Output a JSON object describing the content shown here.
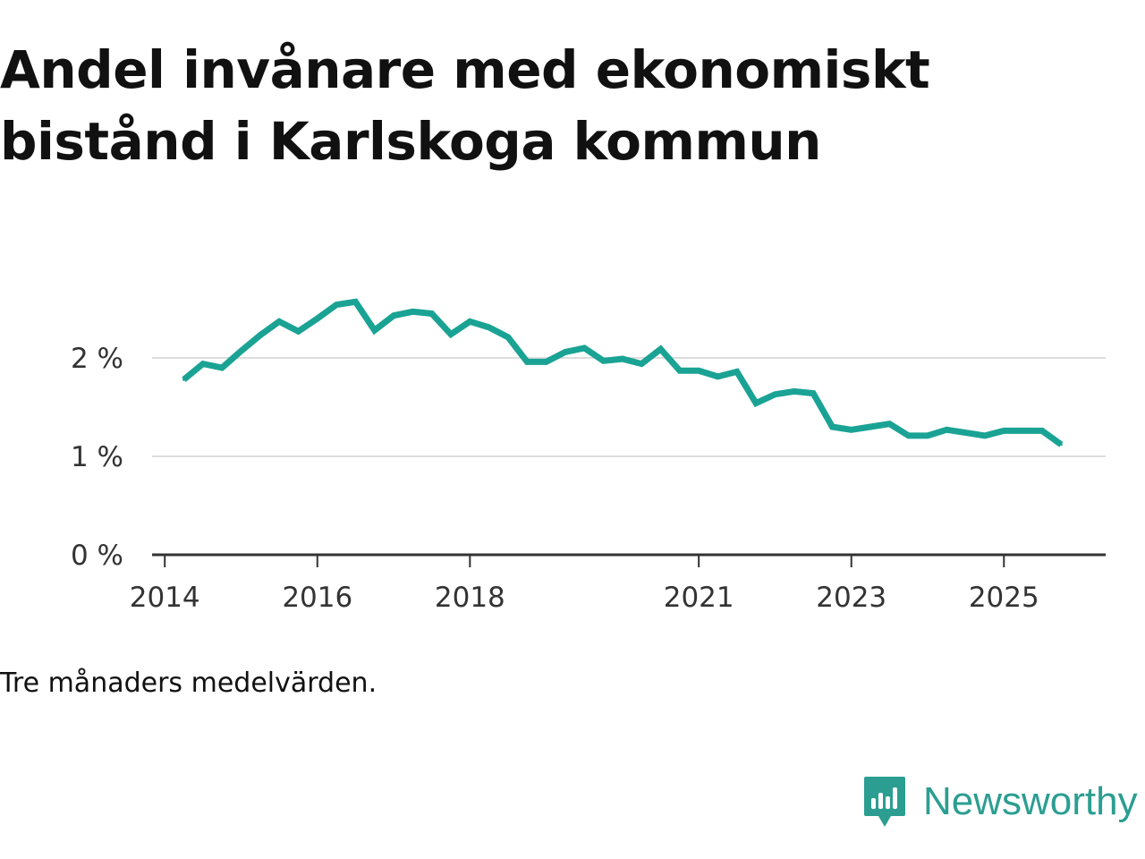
{
  "title": "Andel invånare med ekonomiskt bistånd i Karlskoga kommun",
  "note": "Tre månaders medelvärden.",
  "brand": {
    "name": "Newsworthy"
  },
  "colors": {
    "line": "#1aa394",
    "grid": "#dddddd",
    "axis": "#333333",
    "brand": "#2b9e91"
  },
  "chart_data": {
    "type": "line",
    "title": "Andel invånare med ekonomiskt bistånd i Karlskoga kommun",
    "xlabel": "",
    "ylabel": "",
    "y_unit": "%",
    "ylim": [
      0,
      2.8
    ],
    "xlim": [
      "2013-11",
      "2026-05"
    ],
    "grid": "horizontal",
    "legend": "none",
    "y_ticks": [
      {
        "value": 0,
        "label": "0 %"
      },
      {
        "value": 1,
        "label": "1 %"
      },
      {
        "value": 2,
        "label": "2 %"
      }
    ],
    "x_ticks": [
      {
        "value": "2014-01",
        "label": "2014"
      },
      {
        "value": "2016-01",
        "label": "2016"
      },
      {
        "value": "2018-01",
        "label": "2018"
      },
      {
        "value": "2021-01",
        "label": "2021"
      },
      {
        "value": "2023-01",
        "label": "2023"
      },
      {
        "value": "2025-01",
        "label": "2025"
      }
    ],
    "x": [
      "2014-04",
      "2014-07",
      "2014-10",
      "2015-01",
      "2015-04",
      "2015-07",
      "2015-10",
      "2016-01",
      "2016-04",
      "2016-07",
      "2016-10",
      "2017-01",
      "2017-04",
      "2017-07",
      "2017-10",
      "2018-01",
      "2018-04",
      "2018-07",
      "2018-10",
      "2019-01",
      "2019-04",
      "2019-07",
      "2019-10",
      "2020-01",
      "2020-04",
      "2020-07",
      "2020-10",
      "2021-01",
      "2021-04",
      "2021-07",
      "2021-10",
      "2022-01",
      "2022-04",
      "2022-07",
      "2022-10",
      "2023-01",
      "2023-04",
      "2023-07",
      "2023-10",
      "2024-01",
      "2024-04",
      "2024-07",
      "2024-10",
      "2025-01",
      "2025-04",
      "2025-07"
    ],
    "series": [
      {
        "values": [
          1.78,
          1.94,
          1.9,
          2.07,
          2.23,
          2.37,
          2.27,
          2.4,
          2.54,
          2.57,
          2.28,
          2.43,
          2.47,
          2.45,
          2.24,
          2.37,
          2.31,
          2.21,
          1.96,
          1.96,
          2.06,
          2.1,
          1.97,
          1.99,
          1.94,
          2.09,
          1.87,
          1.87,
          1.81,
          1.86,
          1.54,
          1.63,
          1.66,
          1.64,
          1.3,
          1.27,
          1.3,
          1.33,
          1.21,
          1.21,
          1.27,
          1.24,
          1.21,
          1.26,
          1.26,
          1.26
        ]
      }
    ],
    "last_point": {
      "x": "2025-10",
      "value": 1.12
    }
  }
}
